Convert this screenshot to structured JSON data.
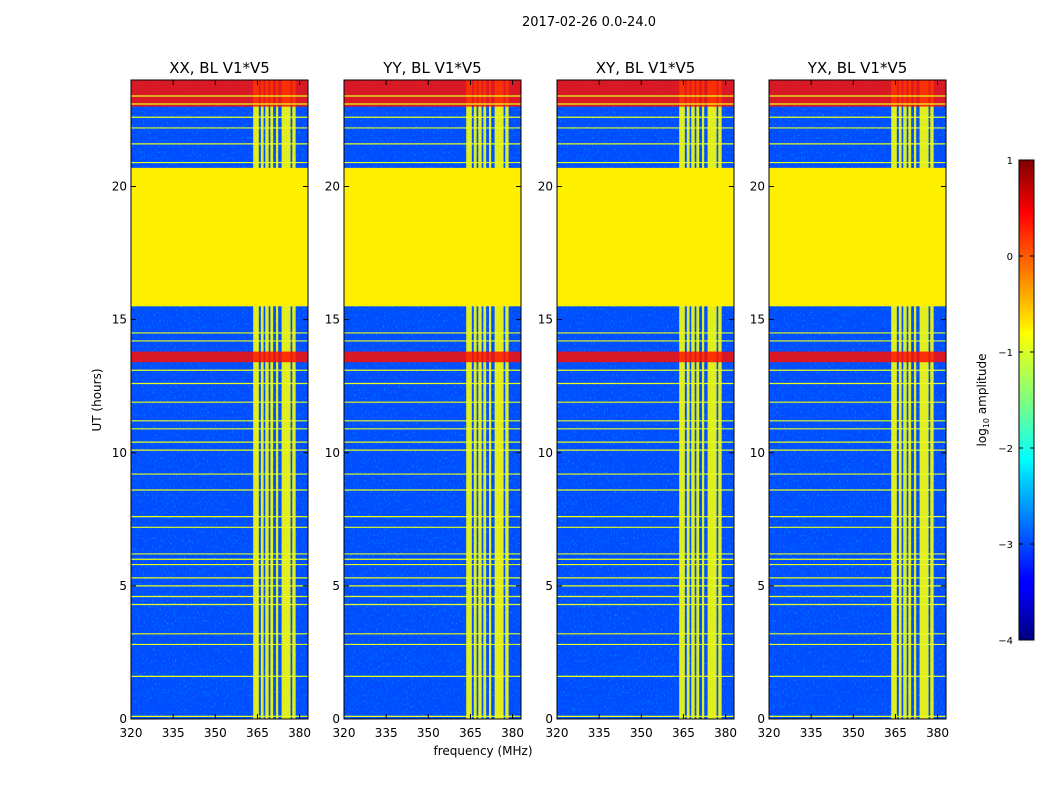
{
  "chart_data": {
    "type": "heatmap",
    "suptitle": "2017-02-26 0.0-24.0",
    "xlabel": "frequency (MHz)",
    "ylabel": "UT (hours)",
    "xlim": [
      320,
      383
    ],
    "ylim": [
      0,
      24
    ],
    "xticks": [
      320,
      335,
      350,
      365,
      380
    ],
    "yticks": [
      0,
      5,
      10,
      15,
      20
    ],
    "panels": [
      {
        "title": "XX, BL V1*V5"
      },
      {
        "title": "YY, BL V1*V5"
      },
      {
        "title": "XY, BL V1*V5"
      },
      {
        "title": "YX, BL V1*V5"
      }
    ],
    "flagged_time_range": [
      15.5,
      20.7
    ],
    "flagged_value": -0.8,
    "background_value": -3,
    "rfi_frequency_bands": [
      [
        363.5,
        365.5
      ],
      [
        366.2,
        367.2
      ],
      [
        367.8,
        369
      ],
      [
        369.6,
        370.6
      ],
      [
        371.6,
        372.4
      ],
      [
        373.6,
        376.8
      ],
      [
        377.4,
        378.6
      ]
    ],
    "rfi_band_value": -0.9,
    "strong_rfi_time_bands": [
      [
        23.0,
        24.0
      ],
      [
        13.4,
        13.8
      ]
    ],
    "horizontal_flag_lines": [
      0.1,
      1.6,
      2.8,
      3.2,
      4.3,
      4.6,
      5.0,
      5.3,
      5.8,
      6.0,
      6.2,
      7.2,
      7.6,
      8.6,
      9.2,
      10.1,
      10.4,
      10.9,
      11.2,
      11.9,
      12.6,
      13.1,
      14.2,
      14.5,
      20.9,
      21.6,
      22.2,
      22.6,
      23.1,
      23.4
    ],
    "colorbar": {
      "label": "log₁₀ amplitude",
      "label_base": "log",
      "label_sub": "10",
      "label_rest": " amplitude",
      "range": [
        -4,
        1
      ],
      "ticks": [
        1,
        0,
        -1,
        -2,
        -3,
        -4
      ],
      "tick_labels": [
        "1",
        "0",
        "−1",
        "−2",
        "−3",
        "−4"
      ],
      "colormap": "jet"
    }
  }
}
